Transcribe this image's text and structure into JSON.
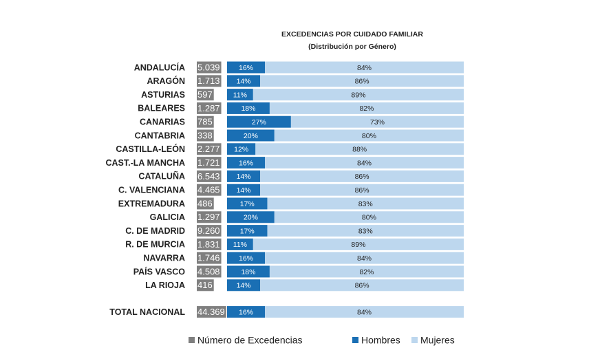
{
  "chart_data": {
    "type": "bar",
    "orientation": "horizontal",
    "stacked": true,
    "title": "EXCEDENCIAS POR CUIDADO FAMILIAR",
    "subtitle": "(Distribución por Género)",
    "categories": [
      "ANDALUCÍA",
      "ARAGÓN",
      "ASTURIAS",
      "BALEARES",
      "CANARIAS",
      "CANTABRIA",
      "CASTILLA-LEÓN",
      "CAST.-LA MANCHA",
      "CATALUÑA",
      "C. VALENCIANA",
      "EXTREMADURA",
      "GALICIA",
      "C. DE MADRID",
      "R. DE MURCIA",
      "NAVARRA",
      "PAÍS VASCO",
      "LA RIOJA",
      "TOTAL NACIONAL"
    ],
    "counts": {
      "name": "Número de Excedencias",
      "color": "#7f7f7f",
      "values": [
        5039,
        1713,
        597,
        1287,
        785,
        338,
        2277,
        1721,
        6543,
        4465,
        486,
        1297,
        9260,
        1831,
        1746,
        4508,
        416,
        44369
      ],
      "value_labels": [
        "5.039",
        "1.713",
        "597",
        "1.287",
        "785",
        "338",
        "2.277",
        "1.721",
        "6.543",
        "4.465",
        "486",
        "1.297",
        "9.260",
        "1.831",
        "1.746",
        "4.508",
        "416",
        "44.369"
      ]
    },
    "xlim": [
      0,
      100
    ],
    "series": [
      {
        "name": "Hombres",
        "color": "#1a6fb4",
        "values": [
          16,
          14,
          11,
          18,
          27,
          20,
          12,
          16,
          14,
          14,
          17,
          20,
          17,
          11,
          16,
          18,
          14,
          16
        ],
        "value_labels": [
          "16%",
          "14%",
          "11%",
          "18%",
          "27%",
          "20%",
          "12%",
          "16%",
          "14%",
          "14%",
          "17%",
          "20%",
          "17%",
          "11%",
          "16%",
          "18%",
          "14%",
          "16%"
        ]
      },
      {
        "name": "Mujeres",
        "color": "#bdd7ee",
        "values": [
          84,
          86,
          89,
          82,
          73,
          80,
          88,
          84,
          86,
          86,
          83,
          80,
          83,
          89,
          84,
          82,
          86,
          84
        ],
        "value_labels": [
          "84%",
          "86%",
          "89%",
          "82%",
          "73%",
          "80%",
          "88%",
          "84%",
          "86%",
          "86%",
          "83%",
          "80%",
          "83%",
          "89%",
          "84%",
          "82%",
          "86%",
          "84%"
        ]
      }
    ]
  }
}
